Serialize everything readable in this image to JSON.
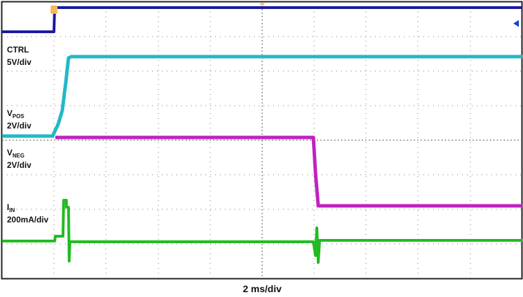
{
  "channels": [
    {
      "name": "CTRL",
      "scale": "5V/div"
    },
    {
      "name": "V",
      "subscript": "POS",
      "scale": "2V/div"
    },
    {
      "name": "V",
      "subscript": "NEG",
      "scale": "2V/div"
    },
    {
      "name": "I",
      "subscript": "IN",
      "scale": "200mA/div"
    }
  ],
  "timebase": "2 ms/div"
}
